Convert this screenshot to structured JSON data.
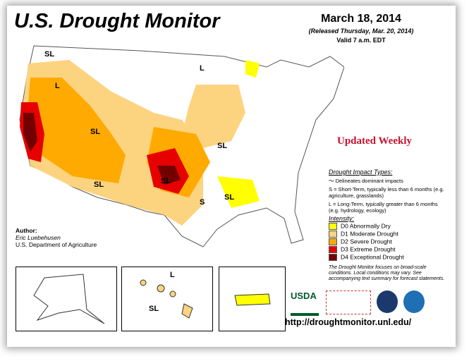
{
  "title": "U.S. Drought Monitor",
  "date": "March 18, 2014",
  "released": "(Released Thursday, Mar. 20, 2014)",
  "valid": "Valid 7 a.m. EDT",
  "updated": "Updated Weekly",
  "author": {
    "label": "Author:",
    "name": "Eric Luebehusen",
    "org": "U.S. Department of Agriculture"
  },
  "legend": {
    "impact_title": "Drought Impact Types:",
    "delineates": "Delineates dominant impacts",
    "short_term": "S = Short-Term, typically less than 6 months (e.g. agriculture, grasslands)",
    "long_term": "L = Long-Term, typically greater than 6 months (e.g. hydrology, ecology)",
    "intensity_title": "Intensity:",
    "levels": [
      {
        "label": "D0 Abnormally Dry",
        "color": "#ffff00"
      },
      {
        "label": "D1 Moderate Drought",
        "color": "#fcd37f"
      },
      {
        "label": "D2 Severe Drought",
        "color": "#ffaa00"
      },
      {
        "label": "D3 Extreme Drought",
        "color": "#e60000"
      },
      {
        "label": "D4 Exceptional Drought",
        "color": "#730000"
      }
    ],
    "note": "The Drought Monitor focuses on broad-scale conditions. Local conditions may vary. See accompanying text summary for forecast statements."
  },
  "map_labels": {
    "sl": "SL",
    "l": "L",
    "s": "S"
  },
  "logos": {
    "usda": "USDA"
  },
  "url": "http://droughtmonitor.unl.edu/"
}
